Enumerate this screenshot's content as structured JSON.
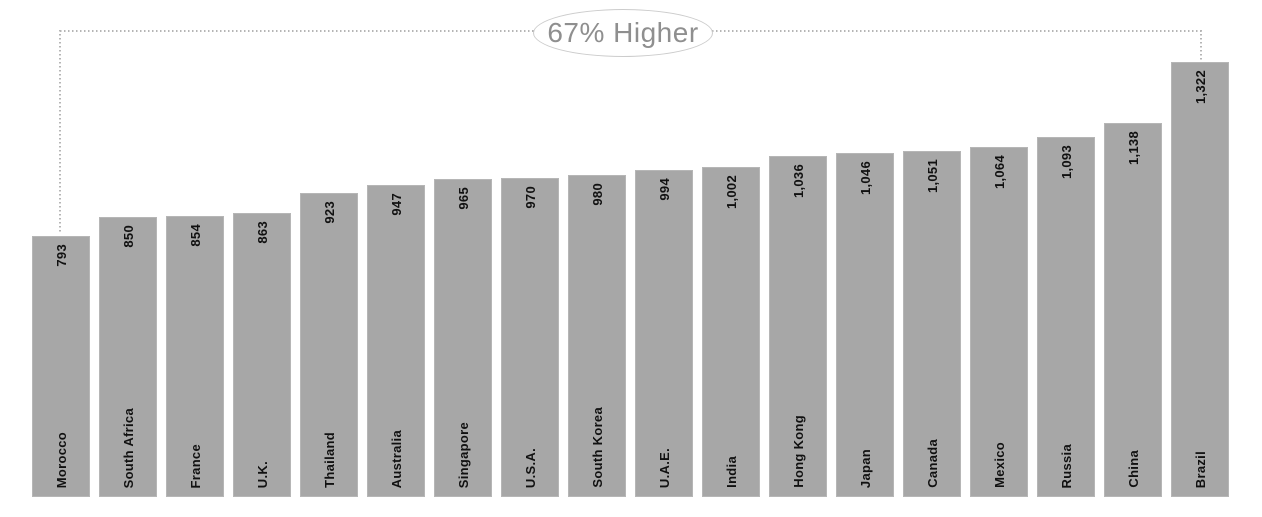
{
  "chart_data": {
    "type": "bar",
    "title": "",
    "xlabel": "",
    "ylabel": "",
    "categories": [
      "Morocco",
      "South Africa",
      "France",
      "U.K.",
      "Thailand",
      "Australia",
      "Singapore",
      "U.S.A.",
      "South Korea",
      "U.A.E.",
      "India",
      "Hong Kong",
      "Japan",
      "Canada",
      "Mexico",
      "Russia",
      "China",
      "Brazil"
    ],
    "values": [
      793,
      850,
      854,
      863,
      923,
      947,
      965,
      970,
      980,
      994,
      1002,
      1036,
      1046,
      1051,
      1064,
      1093,
      1138,
      1322
    ],
    "value_labels": [
      "793",
      "850",
      "854",
      "863",
      "923",
      "947",
      "965",
      "970",
      "980",
      "994",
      "1,002",
      "1,036",
      "1,046",
      "1,051",
      "1,064",
      "1,093",
      "1,138",
      "1,322"
    ],
    "annotation": "67% Higher",
    "ylim": [
      0,
      1322
    ],
    "grid": false,
    "legend": false,
    "axes_visible": false,
    "bar_label_rotation_deg": -90,
    "category_label_rotation_deg": -90,
    "colors": {
      "background": "#ffffff",
      "bar": "#a7a7a7",
      "bar_label": "#111111",
      "annotation_text": "#8f8f8f",
      "annotation_border": "#cccccc",
      "connector_dots": "#b5b5b5"
    }
  }
}
